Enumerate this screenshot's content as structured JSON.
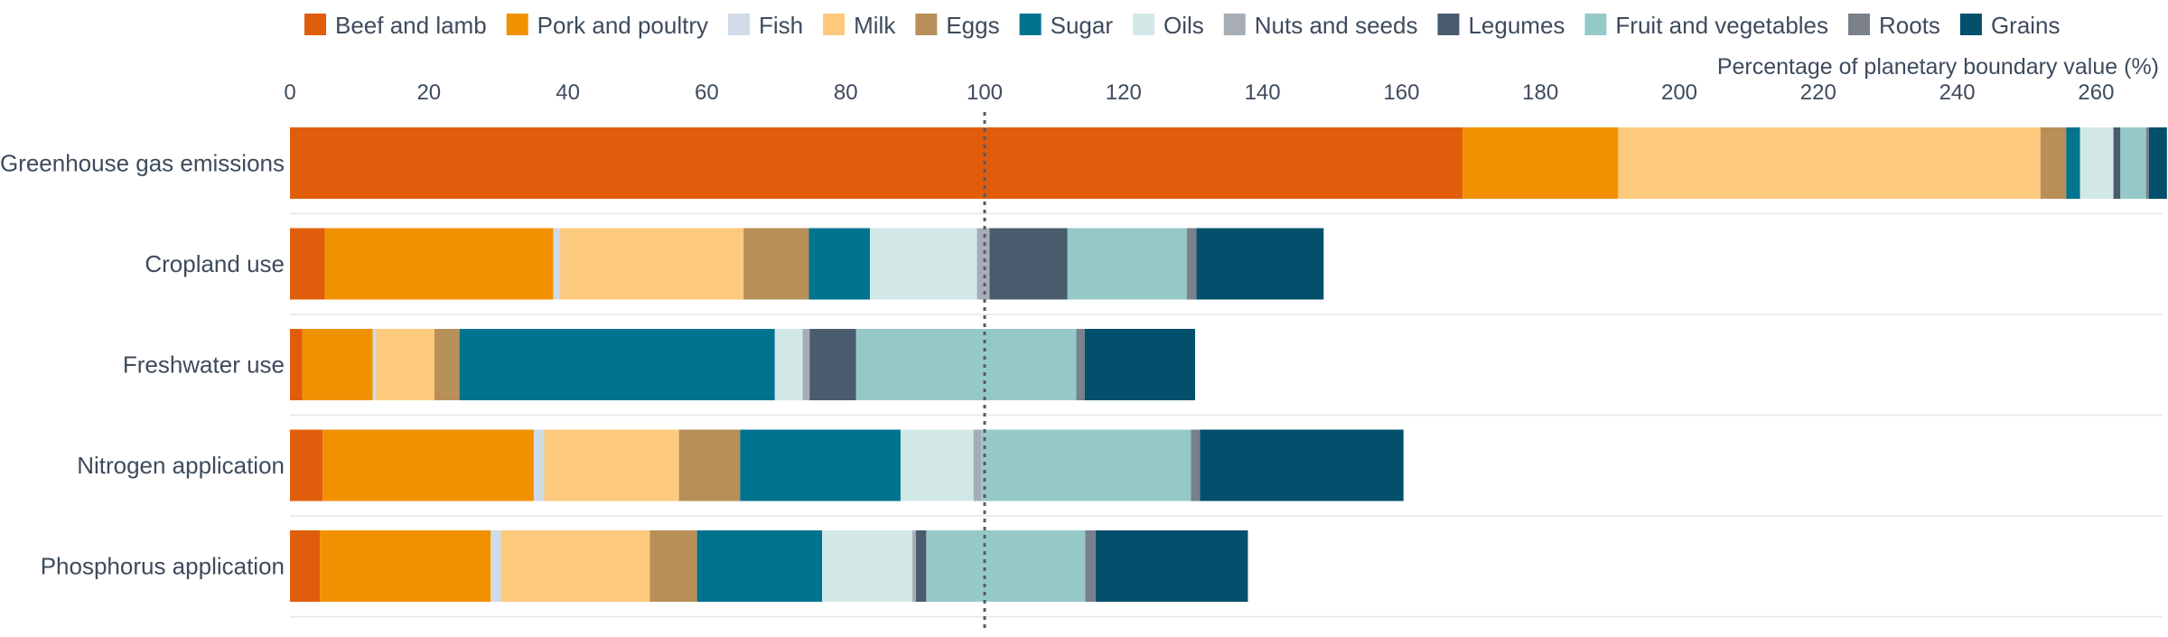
{
  "chart_data": {
    "type": "bar",
    "orientation": "horizontal",
    "stacked": true,
    "title": "",
    "xlabel": "Percentage of planetary boundary value (%)",
    "ylabel": "",
    "xlim": [
      0,
      270
    ],
    "xticks": [
      0,
      20,
      40,
      60,
      80,
      100,
      120,
      140,
      160,
      180,
      200,
      220,
      240,
      260
    ],
    "reference_line": 100,
    "grid": true,
    "legend_position": "top",
    "categories": [
      "Greenhouse gas emissions",
      "Cropland use",
      "Freshwater use",
      "Nitrogen application",
      "Phosphorus application"
    ],
    "series": [
      {
        "name": "Beef and lamb",
        "color": "#e05e0b",
        "values": [
          168.8,
          5.0,
          1.8,
          4.7,
          4.3
        ]
      },
      {
        "name": "Pork and poultry",
        "color": "#f29100",
        "values": [
          22.4,
          32.9,
          10.1,
          30.4,
          24.6
        ]
      },
      {
        "name": "Fish",
        "color": "#cfdbe6",
        "values": [
          0.0,
          1.0,
          0.5,
          1.5,
          1.5
        ]
      },
      {
        "name": "Milk",
        "color": "#fcc97d",
        "values": [
          60.8,
          26.4,
          8.4,
          19.4,
          21.4
        ]
      },
      {
        "name": "Eggs",
        "color": "#b88f58",
        "values": [
          3.7,
          9.4,
          3.6,
          8.8,
          6.8
        ]
      },
      {
        "name": "Sugar",
        "color": "#00738f",
        "values": [
          2.0,
          8.8,
          45.4,
          23.1,
          18.0
        ]
      },
      {
        "name": "Oils",
        "color": "#d2e8e7",
        "values": [
          4.8,
          15.4,
          4.0,
          10.5,
          13.0
        ]
      },
      {
        "name": "Nuts and seeds",
        "color": "#a6adb6",
        "values": [
          0.0,
          1.8,
          1.0,
          1.1,
          0.5
        ]
      },
      {
        "name": "Legumes",
        "color": "#485c6e",
        "values": [
          1.0,
          11.2,
          6.7,
          0.0,
          1.5
        ]
      },
      {
        "name": "Fruit and vegetables",
        "color": "#95c9c8",
        "values": [
          3.7,
          17.2,
          31.7,
          30.2,
          22.9
        ]
      },
      {
        "name": "Roots",
        "color": "#7a808c",
        "values": [
          0.4,
          1.4,
          1.2,
          1.3,
          1.5
        ]
      },
      {
        "name": "Grains",
        "color": "#02506b",
        "values": [
          2.6,
          18.3,
          15.9,
          29.3,
          21.9
        ]
      }
    ]
  }
}
